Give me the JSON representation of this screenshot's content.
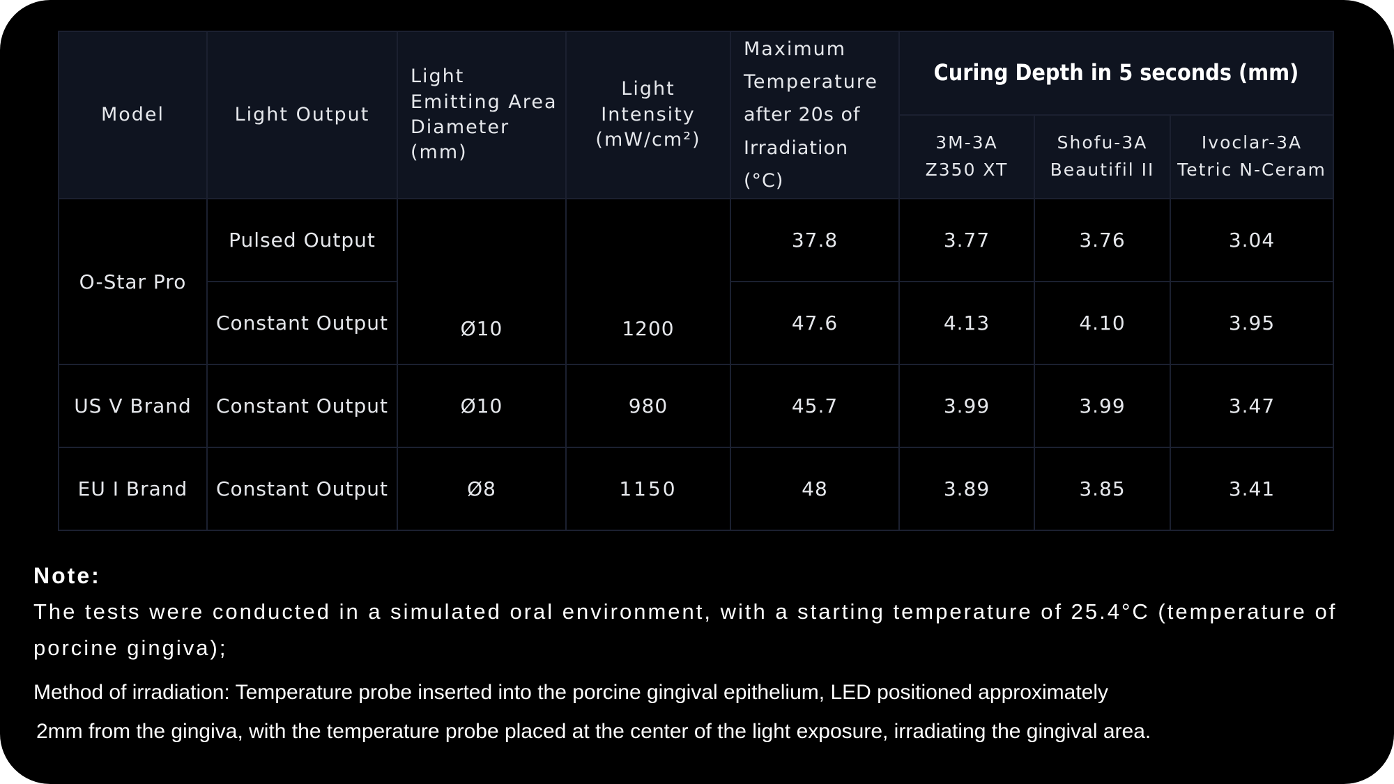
{
  "table": {
    "headers": {
      "model": "Model",
      "light_output": "Light Output",
      "diameter": "Light Emitting Area Diameter (mm)",
      "intensity_line1": "Light Intensity",
      "intensity_line2": "(mW/cm²)",
      "max_temp_line1": "Maximum",
      "max_temp_line2": "Temperature",
      "max_temp_line3": "after 20s of",
      "max_temp_line4": "Irradiation (°C)",
      "curing_group": "Curing Depth in 5 seconds (mm)",
      "materials": [
        {
          "line1": "3M-3A",
          "line2": "Z350 XT"
        },
        {
          "line1": "Shofu-3A",
          "line2": "Beautifil II"
        },
        {
          "line1": "Ivoclar-3A",
          "line2": "Tetric N-Ceram"
        }
      ]
    },
    "rows": [
      {
        "model": "O-Star Pro",
        "output": "Pulsed Output",
        "diameter": "Ø10",
        "intensity": "1200",
        "max_temp": "37.8",
        "depths": [
          "3.77",
          "3.76",
          "3.04"
        ]
      },
      {
        "model": "O-Star Pro",
        "output": "Constant Output",
        "diameter": "Ø10",
        "intensity": "1200",
        "max_temp": "47.6",
        "depths": [
          "4.13",
          "4.10",
          "3.95"
        ]
      },
      {
        "model": "US V Brand",
        "output": "Constant Output",
        "diameter": "Ø10",
        "intensity": "980",
        "max_temp": "45.7",
        "depths": [
          "3.99",
          "3.99",
          "3.47"
        ]
      },
      {
        "model": "EU I Brand",
        "output": "Constant Output",
        "diameter": "Ø8",
        "intensity": "1150",
        "max_temp": "48",
        "depths": [
          "3.89",
          "3.85",
          "3.41"
        ]
      }
    ]
  },
  "notes": {
    "title": "Note:",
    "line1": "The tests were conducted in a simulated oral environment, with a starting temperature of 25.4°C (temperature of porcine gingiva);",
    "line2a": "Method of irradiation: Temperature probe inserted into the porcine gingival epithelium, LED positioned approximately",
    "line2b": "2mm from the gingiva, with the temperature probe placed at the center of the light exposure, irradiating the gingival area."
  }
}
